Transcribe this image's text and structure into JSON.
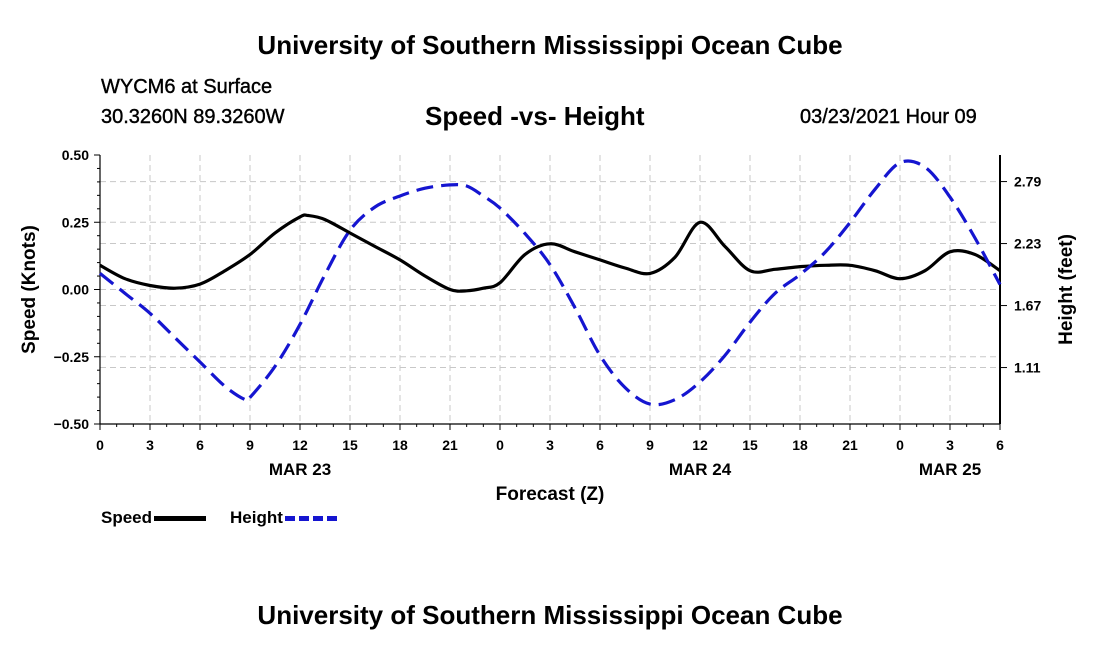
{
  "header": {
    "title_top": "University of Southern Mississippi Ocean Cube",
    "station": "WYCM6 at Surface",
    "coords": "30.3260N 89.3260W",
    "chart_title": "Speed -vs- Height",
    "datetime": "03/23/2021 Hour 09",
    "title_bottom": "University of Southern Mississippi Ocean Cube"
  },
  "legend": {
    "speed_label": "Speed",
    "height_label": "Height"
  },
  "colors": {
    "speed": "#000000",
    "height": "#1515d0",
    "grid": "#c8c8c8"
  },
  "chart_data": {
    "type": "line",
    "title": "Speed -vs- Height",
    "xlabel": "Forecast (Z)",
    "ylabel": "Speed (Knots)",
    "y2label": "Height (feet)",
    "xlim": [
      0,
      54
    ],
    "ylim": [
      -0.5,
      0.5
    ],
    "y2lim": [
      0.6,
      3.03
    ],
    "x_ticks": [
      0,
      3,
      6,
      9,
      12,
      15,
      18,
      21,
      24,
      27,
      30,
      33,
      36,
      39,
      42,
      45,
      48,
      51,
      54
    ],
    "x_tick_labels": [
      "0",
      "3",
      "6",
      "9",
      "12",
      "15",
      "18",
      "21",
      "0",
      "3",
      "6",
      "9",
      "12",
      "15",
      "18",
      "21",
      "0",
      "3",
      "6"
    ],
    "y_ticks": [
      0.5,
      0.25,
      0.0,
      -0.25,
      -0.5
    ],
    "y_tick_labels": [
      "0.50",
      "0.25",
      "0.00",
      "−0.25",
      "−0.50"
    ],
    "y2_ticks": [
      2.79,
      2.23,
      1.67,
      1.11
    ],
    "y2_tick_labels": [
      "2.79",
      "2.23",
      "1.67",
      "1.11"
    ],
    "date_labels": [
      {
        "x": 12,
        "label": "MAR 23"
      },
      {
        "x": 36,
        "label": "MAR 24"
      },
      {
        "x": 51,
        "label": "MAR 25"
      }
    ],
    "series": [
      {
        "name": "Speed",
        "axis": "left",
        "style": "solid",
        "x": [
          0,
          1.5,
          3,
          4.5,
          6,
          7.5,
          9,
          10.5,
          12,
          12.5,
          13.5,
          15,
          16.5,
          18,
          19.5,
          21,
          22,
          23,
          24,
          25.5,
          27,
          28.5,
          30,
          31.5,
          33,
          34.5,
          36,
          37.5,
          39,
          40.5,
          42,
          43.5,
          45,
          46.5,
          48,
          49.5,
          51,
          52.5,
          54
        ],
        "values": [
          0.09,
          0.04,
          0.015,
          0.005,
          0.02,
          0.07,
          0.13,
          0.21,
          0.27,
          0.275,
          0.26,
          0.21,
          0.16,
          0.11,
          0.05,
          0.0,
          -0.005,
          0.005,
          0.025,
          0.13,
          0.17,
          0.14,
          0.11,
          0.08,
          0.06,
          0.12,
          0.25,
          0.16,
          0.07,
          0.075,
          0.085,
          0.09,
          0.09,
          0.07,
          0.04,
          0.07,
          0.14,
          0.13,
          0.07
        ]
      },
      {
        "name": "Height",
        "axis": "right",
        "style": "dashed",
        "x": [
          0,
          1.5,
          3,
          4.5,
          6,
          7.5,
          8.7,
          9,
          10.5,
          12,
          13.5,
          15,
          16.5,
          18,
          19.5,
          21,
          22,
          23,
          24,
          25.5,
          27,
          28.5,
          30,
          31.5,
          33,
          34.5,
          36,
          37.5,
          39,
          40.5,
          42,
          43.5,
          45,
          46.5,
          48,
          49.5,
          51,
          52.5,
          54
        ],
        "values": [
          1.96,
          1.78,
          1.6,
          1.38,
          1.16,
          0.94,
          0.82,
          0.84,
          1.12,
          1.5,
          1.95,
          2.35,
          2.56,
          2.66,
          2.73,
          2.76,
          2.75,
          2.66,
          2.55,
          2.32,
          2.04,
          1.65,
          1.22,
          0.93,
          0.78,
          0.82,
          0.98,
          1.22,
          1.52,
          1.78,
          1.95,
          2.15,
          2.42,
          2.72,
          2.96,
          2.92,
          2.65,
          2.28,
          1.86
        ]
      }
    ]
  }
}
